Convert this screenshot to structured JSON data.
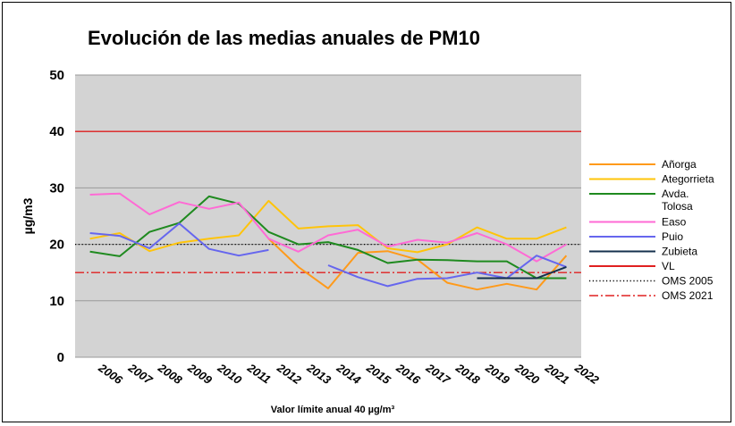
{
  "chart_data": {
    "type": "line",
    "title": "Evolución de las medias anuales de PM10",
    "ylabel": "µg/m3",
    "xlabel": "Valor límite anual 40 µg/m³",
    "ylim": [
      0,
      50
    ],
    "yticks": [
      0,
      10,
      20,
      30,
      40,
      50
    ],
    "grid": true,
    "legend_position": "right",
    "categories": [
      "2006",
      "2007",
      "2008",
      "2009",
      "2010",
      "2011",
      "2012",
      "2013",
      "2014",
      "2015",
      "2016",
      "2017",
      "2018",
      "2019",
      "2020",
      "2021",
      "2022"
    ],
    "series": [
      {
        "name": "Añorga",
        "color": "#ff9a1a",
        "style": "solid",
        "values": [
          null,
          null,
          null,
          null,
          null,
          null,
          21,
          16,
          12.2,
          18.5,
          18.8,
          17.3,
          13.2,
          12,
          13,
          12,
          18
        ]
      },
      {
        "name": "Ategorrieta",
        "color": "#ffc40a",
        "style": "solid",
        "values": [
          21,
          22,
          18.8,
          20.3,
          21,
          21.6,
          27.7,
          22.8,
          23.2,
          23.4,
          19.3,
          18.6,
          20,
          23,
          21,
          21,
          23
        ]
      },
      {
        "name": "Avda. Tolosa",
        "label_lines": [
          "Avda.",
          "Tolosa"
        ],
        "color": "#1f8a1f",
        "style": "solid",
        "values": [
          18.7,
          17.9,
          22.2,
          23.8,
          28.5,
          27.2,
          22.2,
          20,
          20.4,
          19,
          16.7,
          17.3,
          17.2,
          17,
          17,
          14,
          14
        ]
      },
      {
        "name": "Easo",
        "color": "#ff6ad5",
        "style": "solid",
        "values": [
          28.8,
          29,
          25.3,
          27.5,
          26.3,
          27.4,
          21,
          18.7,
          21.6,
          22.6,
          19.6,
          20.8,
          20.3,
          22,
          20,
          17,
          20
        ]
      },
      {
        "name": "Puio",
        "color": "#6666ee",
        "style": "solid",
        "values": [
          22,
          21.5,
          19.3,
          23.7,
          19.2,
          18,
          19,
          null,
          16.3,
          14.2,
          12.6,
          13.9,
          14,
          15,
          14,
          18,
          16
        ]
      },
      {
        "name": "Zubieta",
        "color": "#14304d",
        "style": "solid",
        "values": [
          null,
          null,
          null,
          null,
          null,
          null,
          null,
          null,
          null,
          null,
          null,
          null,
          null,
          14,
          14,
          14,
          16
        ]
      },
      {
        "name": "VL",
        "color": "#e02020",
        "style": "solid",
        "constant": 40
      },
      {
        "name": "OMS 2005",
        "color": "#000000",
        "style": "dotted",
        "constant": 20
      },
      {
        "name": "OMS 2021",
        "color": "#e02020",
        "style": "dashdot",
        "constant": 15
      }
    ]
  }
}
